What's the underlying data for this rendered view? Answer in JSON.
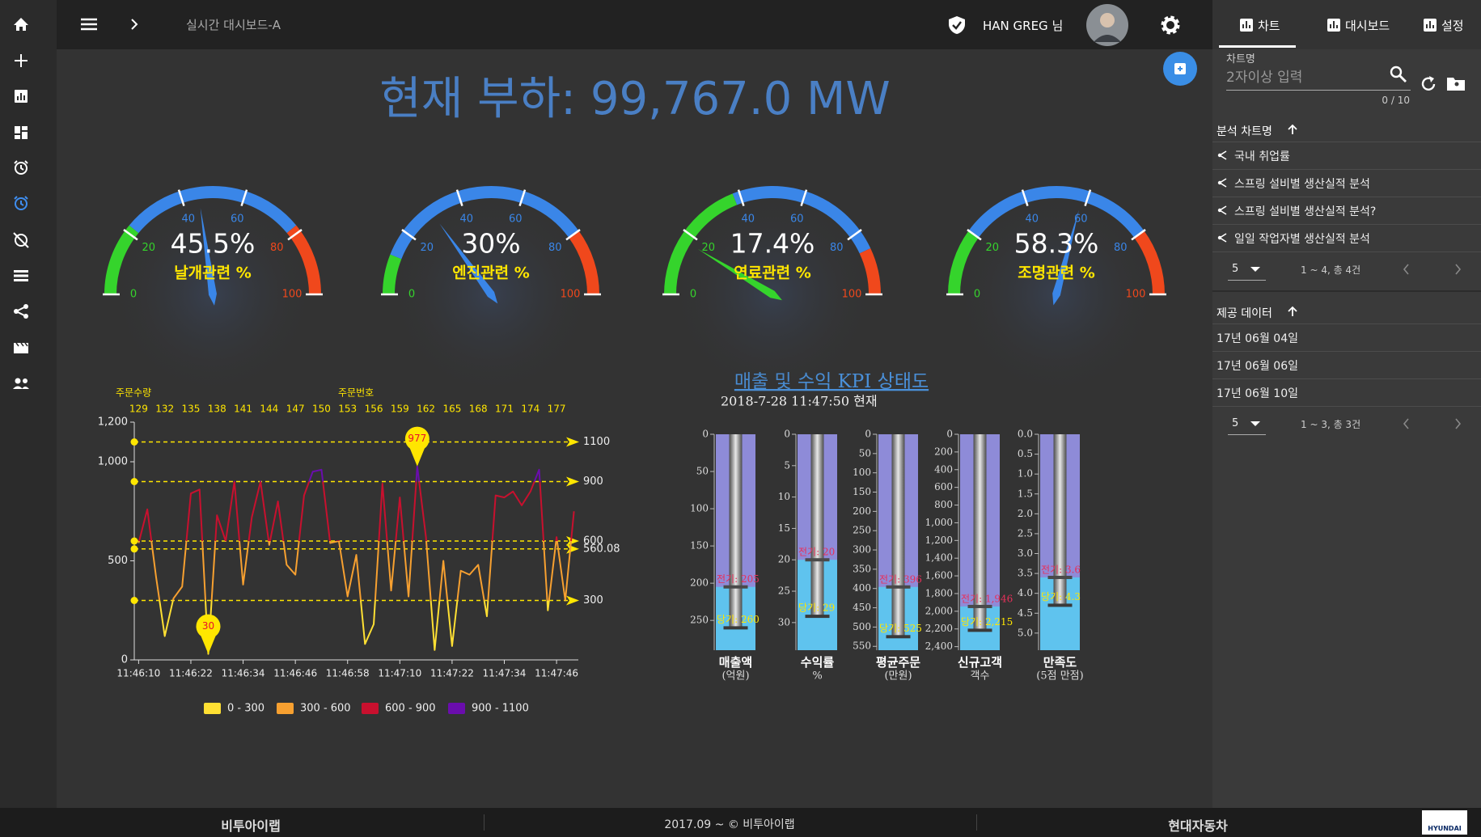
{
  "header": {
    "breadcrumb": "실시간 대시보드-A",
    "user": "HAN GREG 님"
  },
  "title": "현재 부하: 99,767.0 MW",
  "gauge_range": [
    0,
    100
  ],
  "gauge_ticks": [
    0,
    20,
    40,
    60,
    80,
    100
  ],
  "gauges": [
    {
      "value": 45.5,
      "value_label": "45.5%",
      "name": "날개관련 %",
      "bands": [
        {
          "from": 0,
          "to": 22,
          "color": "#35d42c"
        },
        {
          "from": 22,
          "to": 78,
          "color": "#3a86e8"
        },
        {
          "from": 78,
          "to": 100,
          "color": "#f0481c"
        }
      ]
    },
    {
      "value": 30,
      "value_label": "30%",
      "name": "엔진관련 %",
      "bands": [
        {
          "from": 0,
          "to": 12,
          "color": "#35d42c"
        },
        {
          "from": 12,
          "to": 80,
          "color": "#3a86e8"
        },
        {
          "from": 80,
          "to": 100,
          "color": "#f0481c"
        }
      ]
    },
    {
      "value": 17.4,
      "value_label": "17.4%",
      "name": "연료관련 %",
      "bands": [
        {
          "from": 0,
          "to": 38,
          "color": "#35d42c"
        },
        {
          "from": 38,
          "to": 86,
          "color": "#3a86e8"
        },
        {
          "from": 86,
          "to": 100,
          "color": "#f0481c"
        }
      ]
    },
    {
      "value": 58.3,
      "value_label": "58.3%",
      "name": "조명관련 %",
      "bands": [
        {
          "from": 0,
          "to": 20,
          "color": "#35d42c"
        },
        {
          "from": 20,
          "to": 80,
          "color": "#3a86e8"
        },
        {
          "from": 80,
          "to": 100,
          "color": "#f0481c"
        }
      ]
    }
  ],
  "line_chart": {
    "y_label": "주문수량",
    "x_label": "주문번호",
    "x": [
      129,
      130,
      131,
      132,
      133,
      134,
      135,
      136,
      137,
      138,
      139,
      140,
      141,
      142,
      143,
      144,
      145,
      146,
      147,
      148,
      149,
      150,
      151,
      152,
      153,
      154,
      155,
      156,
      157,
      158,
      159,
      160,
      161,
      162,
      163,
      164,
      165,
      166,
      167,
      168,
      169,
      170,
      171,
      172,
      173,
      174,
      175,
      176,
      177,
      178,
      179
    ],
    "values": [
      590,
      760,
      420,
      120,
      310,
      370,
      840,
      860,
      30,
      730,
      600,
      900,
      380,
      720,
      900,
      580,
      800,
      480,
      430,
      830,
      950,
      960,
      590,
      600,
      320,
      530,
      80,
      180,
      890,
      350,
      820,
      320,
      977,
      620,
      50,
      500,
      70,
      450,
      430,
      480,
      220,
      830,
      820,
      850,
      780,
      850,
      960,
      250,
      620,
      300,
      750
    ],
    "xlim": [
      128.5,
      179.5
    ],
    "ylim": [
      0,
      1200
    ],
    "yticks": [
      0,
      500,
      {
        "value": 1000,
        "label": "1,000"
      },
      {
        "value": 1200,
        "label": "1,200"
      }
    ],
    "order_ticks": [
      129,
      132,
      135,
      138,
      141,
      144,
      147,
      150,
      153,
      156,
      159,
      162,
      165,
      168,
      171,
      174,
      177
    ],
    "time_ticks": [
      {
        "value": 129,
        "label": "11:46:10"
      },
      {
        "value": 135,
        "label": "11:46:22"
      },
      {
        "value": 141,
        "label": "11:46:34"
      },
      {
        "value": 147,
        "label": "11:46:46"
      },
      {
        "value": 153,
        "label": "11:46:58"
      },
      {
        "value": 159,
        "label": "11:47:10"
      },
      {
        "value": 165,
        "label": "11:47:22"
      },
      {
        "value": 171,
        "label": "11:47:34"
      },
      {
        "value": 177,
        "label": "11:47:46"
      }
    ],
    "reference_lines": [
      1100,
      900,
      600,
      560.08,
      300
    ],
    "reference_color": "#ffe600",
    "bands": [
      {
        "name": "0 - 300",
        "from": 0,
        "to": 300,
        "color": "#ffe033"
      },
      {
        "name": "300 - 600",
        "from": 300,
        "to": 600,
        "color": "#f7a030"
      },
      {
        "name": "600 - 900",
        "from": 600,
        "to": 900,
        "color": "#c8102e"
      },
      {
        "name": "900 - 1100",
        "from": 900,
        "to": 1100,
        "color": "#6a0dad"
      }
    ]
  },
  "kpi": {
    "title": "매출 및 수익 KPI 상태도",
    "timestamp": "2018-7-28 11:47:50 현재",
    "bars": [
      {
        "name": "매출액",
        "unit": "(억원)",
        "ylim": [
          0,
          290
        ],
        "ticks": [
          0,
          50,
          100,
          150,
          200,
          250
        ],
        "values": [
          205,
          260
        ],
        "value_labels": [
          "전기: 205",
          "당기: 260"
        ]
      },
      {
        "name": "수익률",
        "unit": "%",
        "ylim": [
          0,
          34.4
        ],
        "ticks": [
          0,
          5,
          10,
          15,
          20,
          25,
          30
        ],
        "values": [
          20,
          29
        ],
        "value_labels": [
          "전기: 20",
          "당기: 29"
        ]
      },
      {
        "name": "평균주문",
        "unit": "(만원)",
        "ylim": [
          0,
          560
        ],
        "ticks": [
          0,
          50,
          100,
          150,
          200,
          250,
          300,
          350,
          400,
          450,
          500,
          550
        ],
        "values": [
          396,
          525
        ],
        "value_labels": [
          "전기: 396",
          "당기: 525"
        ]
      },
      {
        "name": "신규고객",
        "unit": "객수",
        "ylim": [
          0,
          2440
        ],
        "ticks": [
          0,
          200,
          400,
          600,
          800,
          {
            "value": 1000,
            "label": "1,000"
          },
          {
            "value": 1200,
            "label": "1,200"
          },
          {
            "value": 1400,
            "label": "1,400"
          },
          {
            "value": 1600,
            "label": "1,600"
          },
          {
            "value": 1800,
            "label": "1,800"
          },
          {
            "value": 2000,
            "label": "2,000"
          },
          {
            "value": 2200,
            "label": "2,200"
          },
          {
            "value": 2400,
            "label": "2,400"
          }
        ],
        "values": [
          1946,
          2215
        ],
        "value_labels": [
          "전기: 1,946",
          "당기: 2,215"
        ]
      },
      {
        "name": "만족도",
        "unit": "(5점 만점)",
        "ylim": [
          0,
          5.43
        ],
        "ticks": [
          {
            "value": 0,
            "label": "0.0"
          },
          0.5,
          {
            "value": 1,
            "label": "1.0"
          },
          1.5,
          {
            "value": 2,
            "label": "2.0"
          },
          2.5,
          {
            "value": 3,
            "label": "3.0"
          },
          3.5,
          {
            "value": 4,
            "label": "4.0"
          },
          4.5,
          {
            "value": 5,
            "label": "5.0"
          }
        ],
        "values": [
          3.6,
          4.3
        ],
        "value_labels": [
          "전기: 3.6",
          "당기: 4.3"
        ]
      }
    ]
  },
  "right_panel": {
    "tabs": [
      "차트",
      "대시보드",
      "설정"
    ],
    "field_label": "차트명",
    "placeholder": "2자이상 입력",
    "counter": "0 / 10",
    "sections": [
      {
        "title": "분석 차트명",
        "items": [
          "국내 취업률",
          "스프링 설비별 생산실적 분석",
          "스프링 설비별 생산실적 분석?",
          "일일 작업자별 생산실적 분석"
        ],
        "page_size": "5",
        "page_info": "1 ~ 4, 총 4건"
      },
      {
        "title": "제공 데이터",
        "items": [
          "17년 06월 04일",
          "17년 06월 06일",
          "17년 06월 10일"
        ],
        "page_size": "5",
        "page_info": "1 ~ 3, 총 3건"
      }
    ]
  },
  "footer": {
    "left": "비투아이랩",
    "center": "2017.09 ~ © 비투아이랩",
    "right": "현대자동차",
    "logo": "HYUNDAI"
  }
}
